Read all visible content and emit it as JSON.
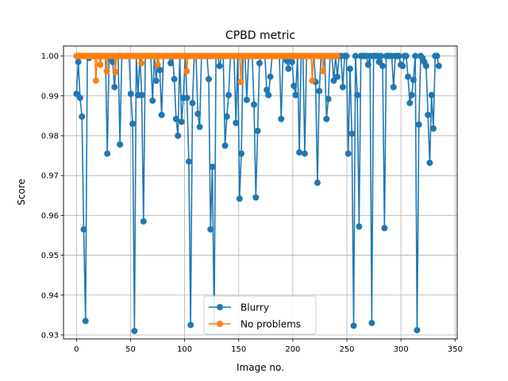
{
  "chart_data": {
    "type": "line",
    "title": "CPBD metric",
    "xlabel": "Image no.",
    "ylabel": "Score",
    "xlim": [
      -12,
      352
    ],
    "ylim": [
      0.929,
      1.0025
    ],
    "xticks": [
      0,
      50,
      100,
      150,
      200,
      250,
      300,
      350
    ],
    "yticks": [
      0.93,
      0.94,
      0.95,
      0.96,
      0.97,
      0.98,
      0.99,
      1.0
    ],
    "xtick_labels": [
      "0",
      "50",
      "100",
      "150",
      "200",
      "250",
      "300",
      "350"
    ],
    "ytick_labels": [
      "0.93",
      "0.94",
      "0.95",
      "0.96",
      "0.97",
      "0.98",
      "0.99",
      "1.00"
    ],
    "grid": true,
    "legend_position": "lower center",
    "series": [
      {
        "name": "Blurry",
        "color": "#1f77b4",
        "marker": "circle",
        "x_start": 0,
        "y": [
          0.9905,
          0.9985,
          0.9895,
          0.9848,
          0.9565,
          0.9335,
          1.0,
          0.9995,
          1.0,
          1.0,
          1.0,
          1.0,
          1.0,
          1.0,
          1.0,
          1.0,
          1.0,
          0.9755,
          1.0,
          0.9992,
          0.9985,
          0.9922,
          1.0,
          1.0,
          0.9778,
          1.0,
          1.0,
          1.0,
          1.0,
          1.0,
          0.9905,
          0.983,
          0.931,
          1.0,
          0.9902,
          1.0,
          0.9902,
          0.9585,
          1.0,
          1.0,
          1.0,
          1.0,
          0.9888,
          1.0,
          0.9938,
          1.0,
          0.9965,
          0.9852,
          1.0,
          1.0,
          1.0,
          1.0,
          0.9982,
          1.0,
          0.9942,
          0.9842,
          0.98,
          1.0,
          0.9835,
          0.9895,
          1.0,
          0.9895,
          0.9735,
          0.9325,
          0.9882,
          1.0,
          1.0,
          0.9855,
          0.9822,
          1.0,
          1.0,
          1.0,
          1.0,
          0.9942,
          0.9565,
          0.9722,
          0.9328,
          1.0,
          1.0,
          0.9975,
          1.0,
          1.0,
          0.9775,
          0.9848,
          0.9902,
          1.0,
          1.0,
          1.0,
          0.9832,
          1.0,
          0.9642,
          0.9755,
          1.0,
          1.0,
          0.989,
          1.0,
          1.0,
          1.0,
          0.9878,
          0.9645,
          0.9812,
          0.9982,
          1.0,
          1.0,
          1.0,
          0.9915,
          0.9902,
          0.9948,
          1.0,
          1.0,
          1.0,
          1.0,
          1.0,
          0.9842,
          1.0,
          1.0,
          0.9988,
          0.9968,
          1.0,
          0.9985,
          0.9925,
          0.9902,
          1.0,
          0.9758,
          1.0,
          1.0,
          0.9755,
          1.0,
          1.0,
          1.0,
          1.0,
          1.0,
          0.9935,
          0.9682,
          0.9912,
          1.0,
          1.0,
          1.0,
          0.9842,
          0.9892,
          1.0,
          1.0,
          0.9938,
          1.0,
          0.9948,
          1.0,
          1.0,
          0.9922,
          1.0,
          1.0,
          0.9755,
          0.9968,
          0.9805,
          0.9323,
          1.0,
          0.9902,
          0.9572,
          1.0,
          1.0,
          1.0,
          1.0,
          0.9978,
          1.0,
          0.933,
          1.0,
          1.0,
          1.0,
          0.9985,
          1.0,
          0.9975,
          0.9568,
          1.0,
          1.0,
          1.0,
          1.0,
          0.9922,
          1.0,
          1.0,
          1.0,
          0.9978,
          0.9975,
          1.0,
          1.0,
          0.9948,
          0.9882,
          0.9902,
          0.994,
          1.0,
          0.9312,
          0.9828,
          1.0,
          0.9995,
          0.9985,
          0.9975,
          0.9852,
          0.9732,
          0.9902,
          0.9818,
          1.0,
          1.0,
          0.9975
        ],
        "x_end": 335
      },
      {
        "name": "No problems",
        "color": "#ff7f0e",
        "marker": "circle",
        "x_start": 0,
        "x_end": 241,
        "y": [
          1.0,
          1.0,
          1.0,
          1.0,
          1.0,
          1.0,
          1.0,
          1.0,
          1.0,
          1.0,
          1.0,
          1.0,
          1.0,
          1.0,
          1.0,
          1.0,
          1.0,
          1.0,
          0.9938,
          1.0,
          1.0,
          1.0,
          0.9978,
          1.0,
          1.0,
          1.0,
          1.0,
          1.0,
          0.9962,
          1.0,
          1.0,
          1.0,
          1.0,
          1.0,
          1.0,
          1.0,
          0.996,
          1.0,
          1.0,
          1.0,
          1.0,
          1.0,
          1.0,
          1.0,
          1.0,
          1.0,
          1.0,
          1.0,
          1.0,
          1.0,
          1.0,
          1.0,
          1.0,
          1.0,
          1.0,
          1.0,
          1.0,
          1.0,
          1.0,
          1.0,
          0.9982,
          1.0,
          1.0,
          1.0,
          1.0,
          1.0,
          1.0,
          1.0,
          1.0,
          1.0,
          1.0,
          1.0,
          1.0,
          1.0,
          1.0,
          0.9978,
          1.0,
          1.0,
          1.0,
          1.0,
          1.0,
          1.0,
          1.0,
          1.0,
          1.0,
          1.0,
          1.0,
          1.0,
          1.0,
          1.0,
          1.0,
          1.0,
          1.0,
          1.0,
          1.0,
          1.0,
          1.0,
          1.0,
          1.0,
          1.0,
          1.0,
          1.0,
          0.9962,
          1.0,
          1.0,
          1.0,
          1.0,
          1.0,
          1.0,
          1.0,
          1.0,
          1.0,
          1.0,
          1.0,
          1.0,
          1.0,
          1.0,
          1.0,
          1.0,
          1.0,
          1.0,
          1.0,
          1.0,
          1.0,
          1.0,
          1.0,
          1.0,
          1.0,
          1.0,
          1.0,
          1.0,
          1.0,
          1.0,
          1.0,
          1.0,
          1.0,
          1.0,
          1.0,
          1.0,
          1.0,
          1.0,
          1.0,
          1.0,
          1.0,
          1.0,
          1.0,
          1.0,
          1.0,
          1.0,
          1.0,
          1.0,
          1.0,
          0.9935,
          1.0,
          1.0,
          1.0,
          1.0,
          1.0,
          1.0,
          1.0,
          1.0,
          1.0,
          1.0,
          1.0,
          1.0,
          1.0,
          1.0,
          1.0,
          1.0,
          1.0,
          1.0,
          1.0,
          1.0,
          1.0,
          1.0,
          1.0,
          1.0,
          1.0,
          1.0,
          1.0,
          1.0,
          1.0,
          1.0,
          1.0,
          1.0,
          1.0,
          1.0,
          1.0,
          1.0,
          1.0,
          1.0,
          1.0,
          1.0,
          1.0,
          1.0,
          1.0,
          1.0,
          1.0,
          1.0,
          1.0,
          1.0,
          1.0,
          1.0,
          1.0,
          1.0,
          1.0,
          1.0,
          1.0,
          1.0,
          1.0,
          1.0,
          1.0,
          1.0,
          1.0,
          1.0,
          1.0,
          1.0,
          1.0,
          0.9938,
          1.0,
          1.0,
          1.0,
          1.0,
          1.0,
          1.0,
          1.0,
          1.0,
          1.0,
          0.9962,
          1.0,
          1.0,
          1.0,
          1.0,
          1.0,
          1.0,
          1.0,
          1.0,
          1.0,
          1.0,
          1.0,
          1.0,
          1.0
        ]
      }
    ]
  }
}
